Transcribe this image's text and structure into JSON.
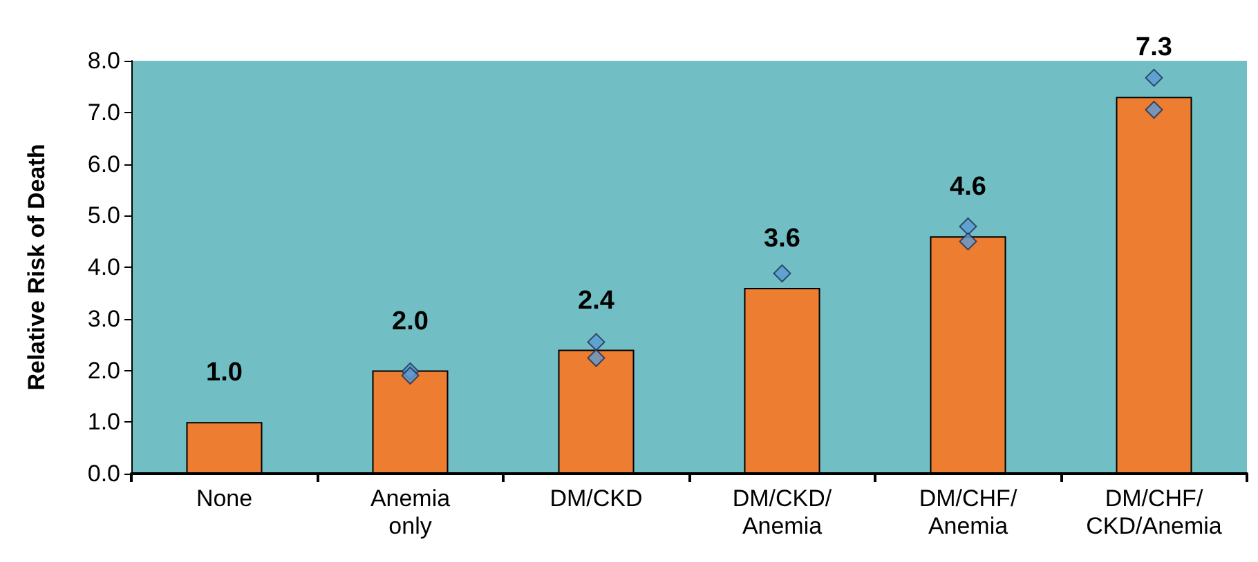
{
  "chart_data": {
    "type": "bar",
    "ylabel": "Relative Risk of Death",
    "categories": [
      "None",
      "Anemia\nonly",
      "DM/CKD",
      "DM/CKD/\nAnemia",
      "DM/CHF/\nAnemia",
      "DM/CHF/\nCKD/Anemia"
    ],
    "series": [
      {
        "color": "#ed7d31",
        "values": [
          1.0,
          2.0,
          2.4,
          3.6,
          4.6,
          7.3
        ],
        "value_labels": [
          "1.0",
          "2.0",
          "2.4",
          "3.6",
          "4.6",
          "7.3"
        ]
      },
      {
        "type": "scatter",
        "color": "#5b9bd5",
        "x": [
          "Anemia\nonly",
          "Anemia\nonly",
          "DM/CKD",
          "DM/CKD",
          "DM/CKD/\nAnemia",
          "DM/CHF/\nAnemia",
          "DM/CHF/\nAnemia",
          "DM/CHF/\nCKD/Anemia",
          "DM/CHF/\nCKD/Anemia"
        ],
        "values": [
          1.98,
          1.9,
          2.55,
          2.24,
          3.88,
          4.79,
          4.5,
          7.67,
          7.05
        ]
      }
    ],
    "ylim": [
      0,
      8
    ],
    "yticks": [
      {
        "value": 0,
        "label": "0.0"
      },
      {
        "value": 1,
        "label": "1.0"
      },
      {
        "value": 2,
        "label": "2.0"
      },
      {
        "value": 3,
        "label": "3.0"
      },
      {
        "value": 4,
        "label": "4.0"
      },
      {
        "value": 5,
        "label": "5.0"
      },
      {
        "value": 6,
        "label": "6.0"
      },
      {
        "value": 7,
        "label": "7.0"
      },
      {
        "value": 8,
        "label": "8.0"
      }
    ],
    "grid": false,
    "marker": "diamond"
  }
}
